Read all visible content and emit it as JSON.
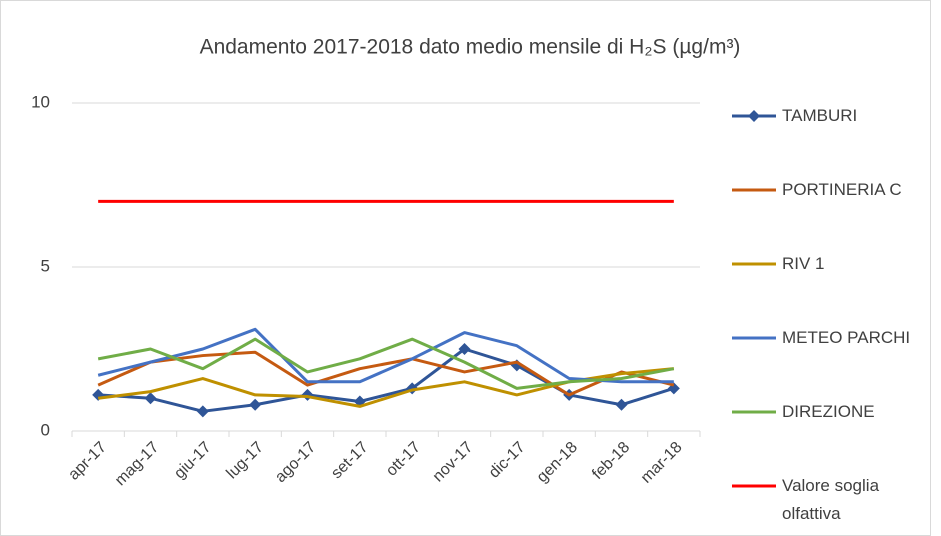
{
  "chart_data": {
    "type": "line",
    "title": "Andamento 2017-2018 dato medio mensile di H₂S (µg/m³)",
    "categories": [
      "apr-17",
      "mag-17",
      "giu-17",
      "lug-17",
      "ago-17",
      "set-17",
      "ott-17",
      "nov-17",
      "dic-17",
      "gen-18",
      "feb-18",
      "mar-18"
    ],
    "series": [
      {
        "name": "TAMBURI",
        "color": "#2f5597",
        "marker": "diamond",
        "values": [
          1.1,
          1.0,
          0.6,
          0.8,
          1.1,
          0.9,
          1.3,
          2.5,
          2.0,
          1.1,
          0.8,
          1.3
        ]
      },
      {
        "name": "PORTINERIA C",
        "color": "#c55a11",
        "values": [
          1.4,
          2.1,
          2.3,
          2.4,
          1.4,
          1.9,
          2.2,
          1.8,
          2.1,
          1.1,
          1.8,
          1.4
        ]
      },
      {
        "name": "RIV 1",
        "color": "#bf9000",
        "values": [
          1.0,
          1.2,
          1.6,
          1.1,
          1.05,
          0.75,
          1.25,
          1.5,
          1.1,
          1.5,
          1.75,
          1.9
        ]
      },
      {
        "name": "METEO PARCHI",
        "color": "#4472c4",
        "values": [
          1.7,
          2.1,
          2.5,
          3.1,
          1.5,
          1.5,
          2.2,
          3.0,
          2.6,
          1.6,
          1.5,
          1.5
        ]
      },
      {
        "name": "DIREZIONE",
        "color": "#70ad47",
        "values": [
          2.2,
          2.5,
          1.9,
          2.8,
          1.8,
          2.2,
          2.8,
          2.1,
          1.3,
          1.5,
          1.6,
          1.9
        ]
      },
      {
        "name": "Valore soglia olfattiva",
        "color": "#ff0000",
        "values": [
          7,
          7,
          7,
          7,
          7,
          7,
          7,
          7,
          7,
          7,
          7,
          7
        ]
      }
    ],
    "ylim": [
      0,
      10
    ],
    "yticks": [
      0,
      5,
      10
    ],
    "grid": true,
    "legend": "right"
  }
}
